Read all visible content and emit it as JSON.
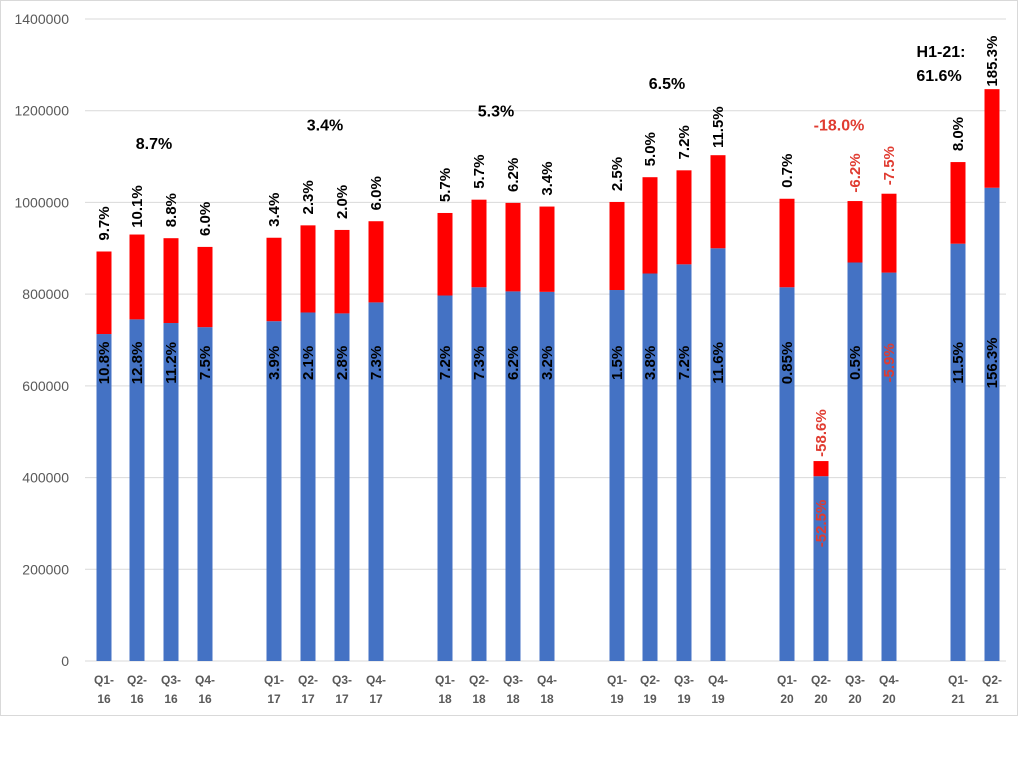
{
  "chart_data": {
    "type": "bar",
    "stacked": true,
    "title": "",
    "xlabel": "",
    "ylabel": "",
    "ylim": [
      0,
      1400000
    ],
    "yticks": [
      "0",
      "200000",
      "400000",
      "600000",
      "800000",
      "1000000",
      "1200000",
      "1400000"
    ],
    "grid": true,
    "colors": {
      "base": "#4472C4",
      "top": "#FF0000",
      "label": "#000000",
      "negative_label": "#E03C31"
    },
    "categories": [
      [
        "Q1-",
        "16"
      ],
      [
        "Q2-",
        "16"
      ],
      [
        "Q3-",
        "16"
      ],
      [
        "Q4-",
        "16"
      ],
      [
        "Q1-",
        "17"
      ],
      [
        "Q2-",
        "17"
      ],
      [
        "Q3-",
        "17"
      ],
      [
        "Q4-",
        "17"
      ],
      [
        "Q1-",
        "18"
      ],
      [
        "Q2-",
        "18"
      ],
      [
        "Q3-",
        "18"
      ],
      [
        "Q4-",
        "18"
      ],
      [
        "Q1-",
        "19"
      ],
      [
        "Q2-",
        "19"
      ],
      [
        "Q3-",
        "19"
      ],
      [
        "Q4-",
        "19"
      ],
      [
        "Q1-",
        "20"
      ],
      [
        "Q2-",
        "20"
      ],
      [
        "Q3-",
        "20"
      ],
      [
        "Q4-",
        "20"
      ],
      [
        "Q1-",
        "21"
      ],
      [
        "Q2-",
        "21"
      ]
    ],
    "series": [
      {
        "name": "base",
        "values": [
          713000,
          745000,
          737000,
          728000,
          741000,
          760000,
          758000,
          782000,
          797000,
          815000,
          806000,
          805000,
          809000,
          845000,
          865000,
          900000,
          815000,
          403000,
          869000,
          847000,
          910000,
          1032000
        ]
      },
      {
        "name": "top",
        "values": [
          180000,
          185000,
          185000,
          175000,
          182000,
          190000,
          182000,
          177000,
          180000,
          191000,
          193000,
          186000,
          192000,
          210000,
          205000,
          203000,
          193000,
          33000,
          134000,
          172000,
          178000,
          215000
        ]
      }
    ],
    "base_labels": [
      "10.8%",
      "12.8%",
      "11.2%",
      "7.5%",
      "3.9%",
      "2.1%",
      "2.8%",
      "7.3%",
      "7.2%",
      "7.3%",
      "6.2%",
      "3.2%",
      "1.5%",
      "3.8%",
      "7.2%",
      "11.6%",
      "0.85%",
      "-52.5%",
      "0.5%",
      "-5.9%",
      "11.5%",
      "156.3%"
    ],
    "top_labels": [
      "9.7%",
      "10.1%",
      "8.8%",
      "6.0%",
      "3.4%",
      "2.3%",
      "2.0%",
      "6.0%",
      "5.7%",
      "5.7%",
      "6.2%",
      "3.4%",
      "2.5%",
      "5.0%",
      "7.2%",
      "11.5%",
      "0.7%",
      "-58.6%",
      "-6.2%",
      "-7.5%",
      "8.0%",
      "185.3%"
    ],
    "group_annotations": [
      {
        "text": "8.7%",
        "group": 0,
        "y": 1130000,
        "color": "#000000"
      },
      {
        "text": "3.4%",
        "group": 1,
        "y": 1170000,
        "color": "#000000"
      },
      {
        "text": "5.3%",
        "group": 2,
        "y": 1200000,
        "color": "#000000"
      },
      {
        "text": "6.5%",
        "group": 3,
        "y": 1260000,
        "color": "#000000"
      },
      {
        "text": "-18.0%",
        "group": 4,
        "y": 1170000,
        "color": "#E03C31"
      }
    ],
    "h1_annotation": {
      "line1": "H1-21:",
      "line2": "61.6%"
    }
  }
}
